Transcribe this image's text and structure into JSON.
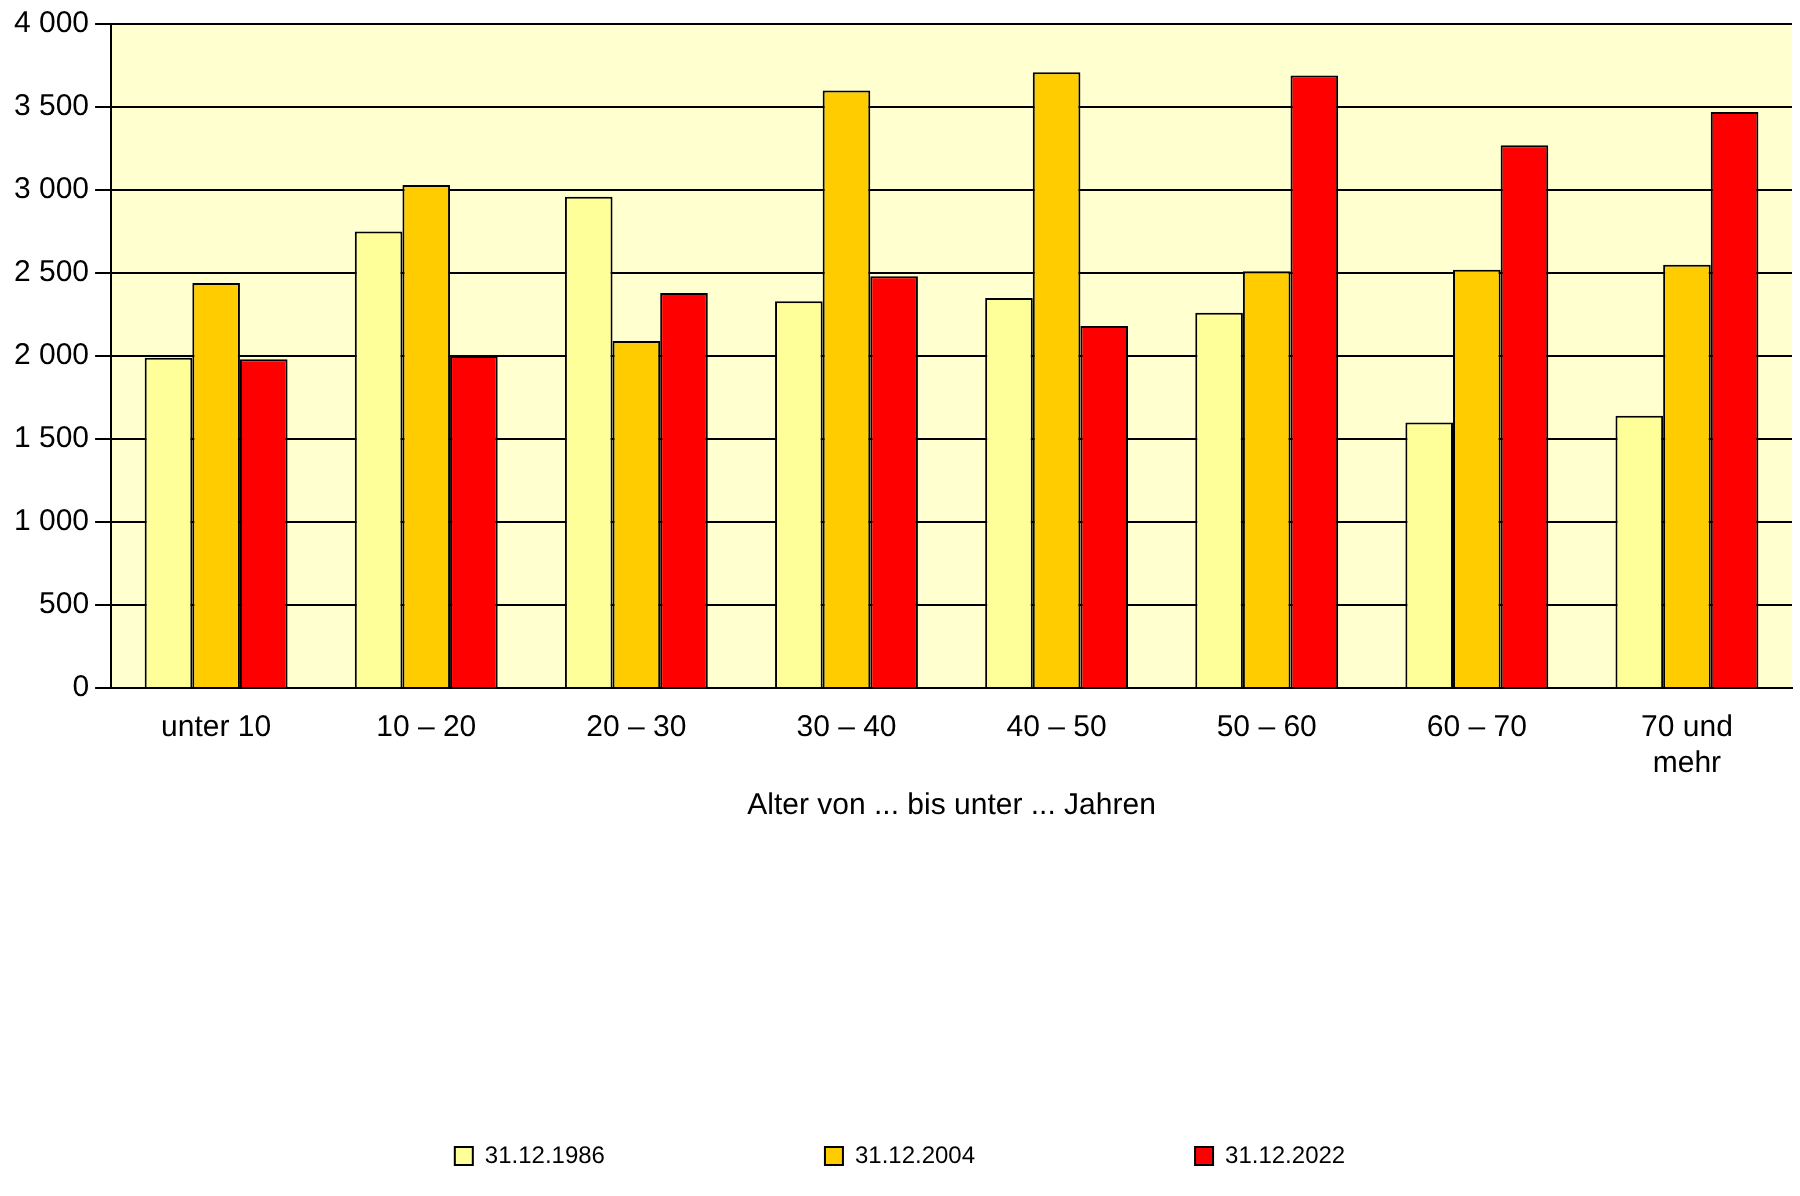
{
  "chart_data": {
    "type": "bar",
    "xlabel": "Alter von ... bis unter ... Jahren",
    "categories": [
      "unter 10",
      "10 – 20",
      "20 – 30",
      "30 – 40",
      "40 – 50",
      "50 – 60",
      "60 – 70",
      "70 und mehr"
    ],
    "series": [
      {
        "name": "31.12.1986",
        "color": "#ffff99",
        "values": [
          1990,
          2750,
          2960,
          2330,
          2350,
          2260,
          1600,
          1640
        ]
      },
      {
        "name": "31.12.2004",
        "color": "#ffcc00",
        "values": [
          2440,
          3030,
          2090,
          3600,
          3710,
          2510,
          2520,
          2550
        ]
      },
      {
        "name": "31.12.2022",
        "color": "#ff0000",
        "values": [
          1980,
          2000,
          2380,
          2480,
          2180,
          3690,
          3270,
          3470
        ]
      }
    ],
    "ylim": [
      0,
      4000
    ],
    "yticks": [
      0,
      500,
      {
        "value": 1000,
        "label": "1 000"
      },
      {
        "value": 1500,
        "label": "1 500"
      },
      {
        "value": 2000,
        "label": "2 000"
      },
      {
        "value": 2500,
        "label": "2 500"
      },
      {
        "value": 3000,
        "label": "3 000"
      },
      {
        "value": 3500,
        "label": "3 500"
      },
      {
        "value": 4000,
        "label": "4 000"
      }
    ],
    "grid": "y",
    "legend": "bottom"
  }
}
